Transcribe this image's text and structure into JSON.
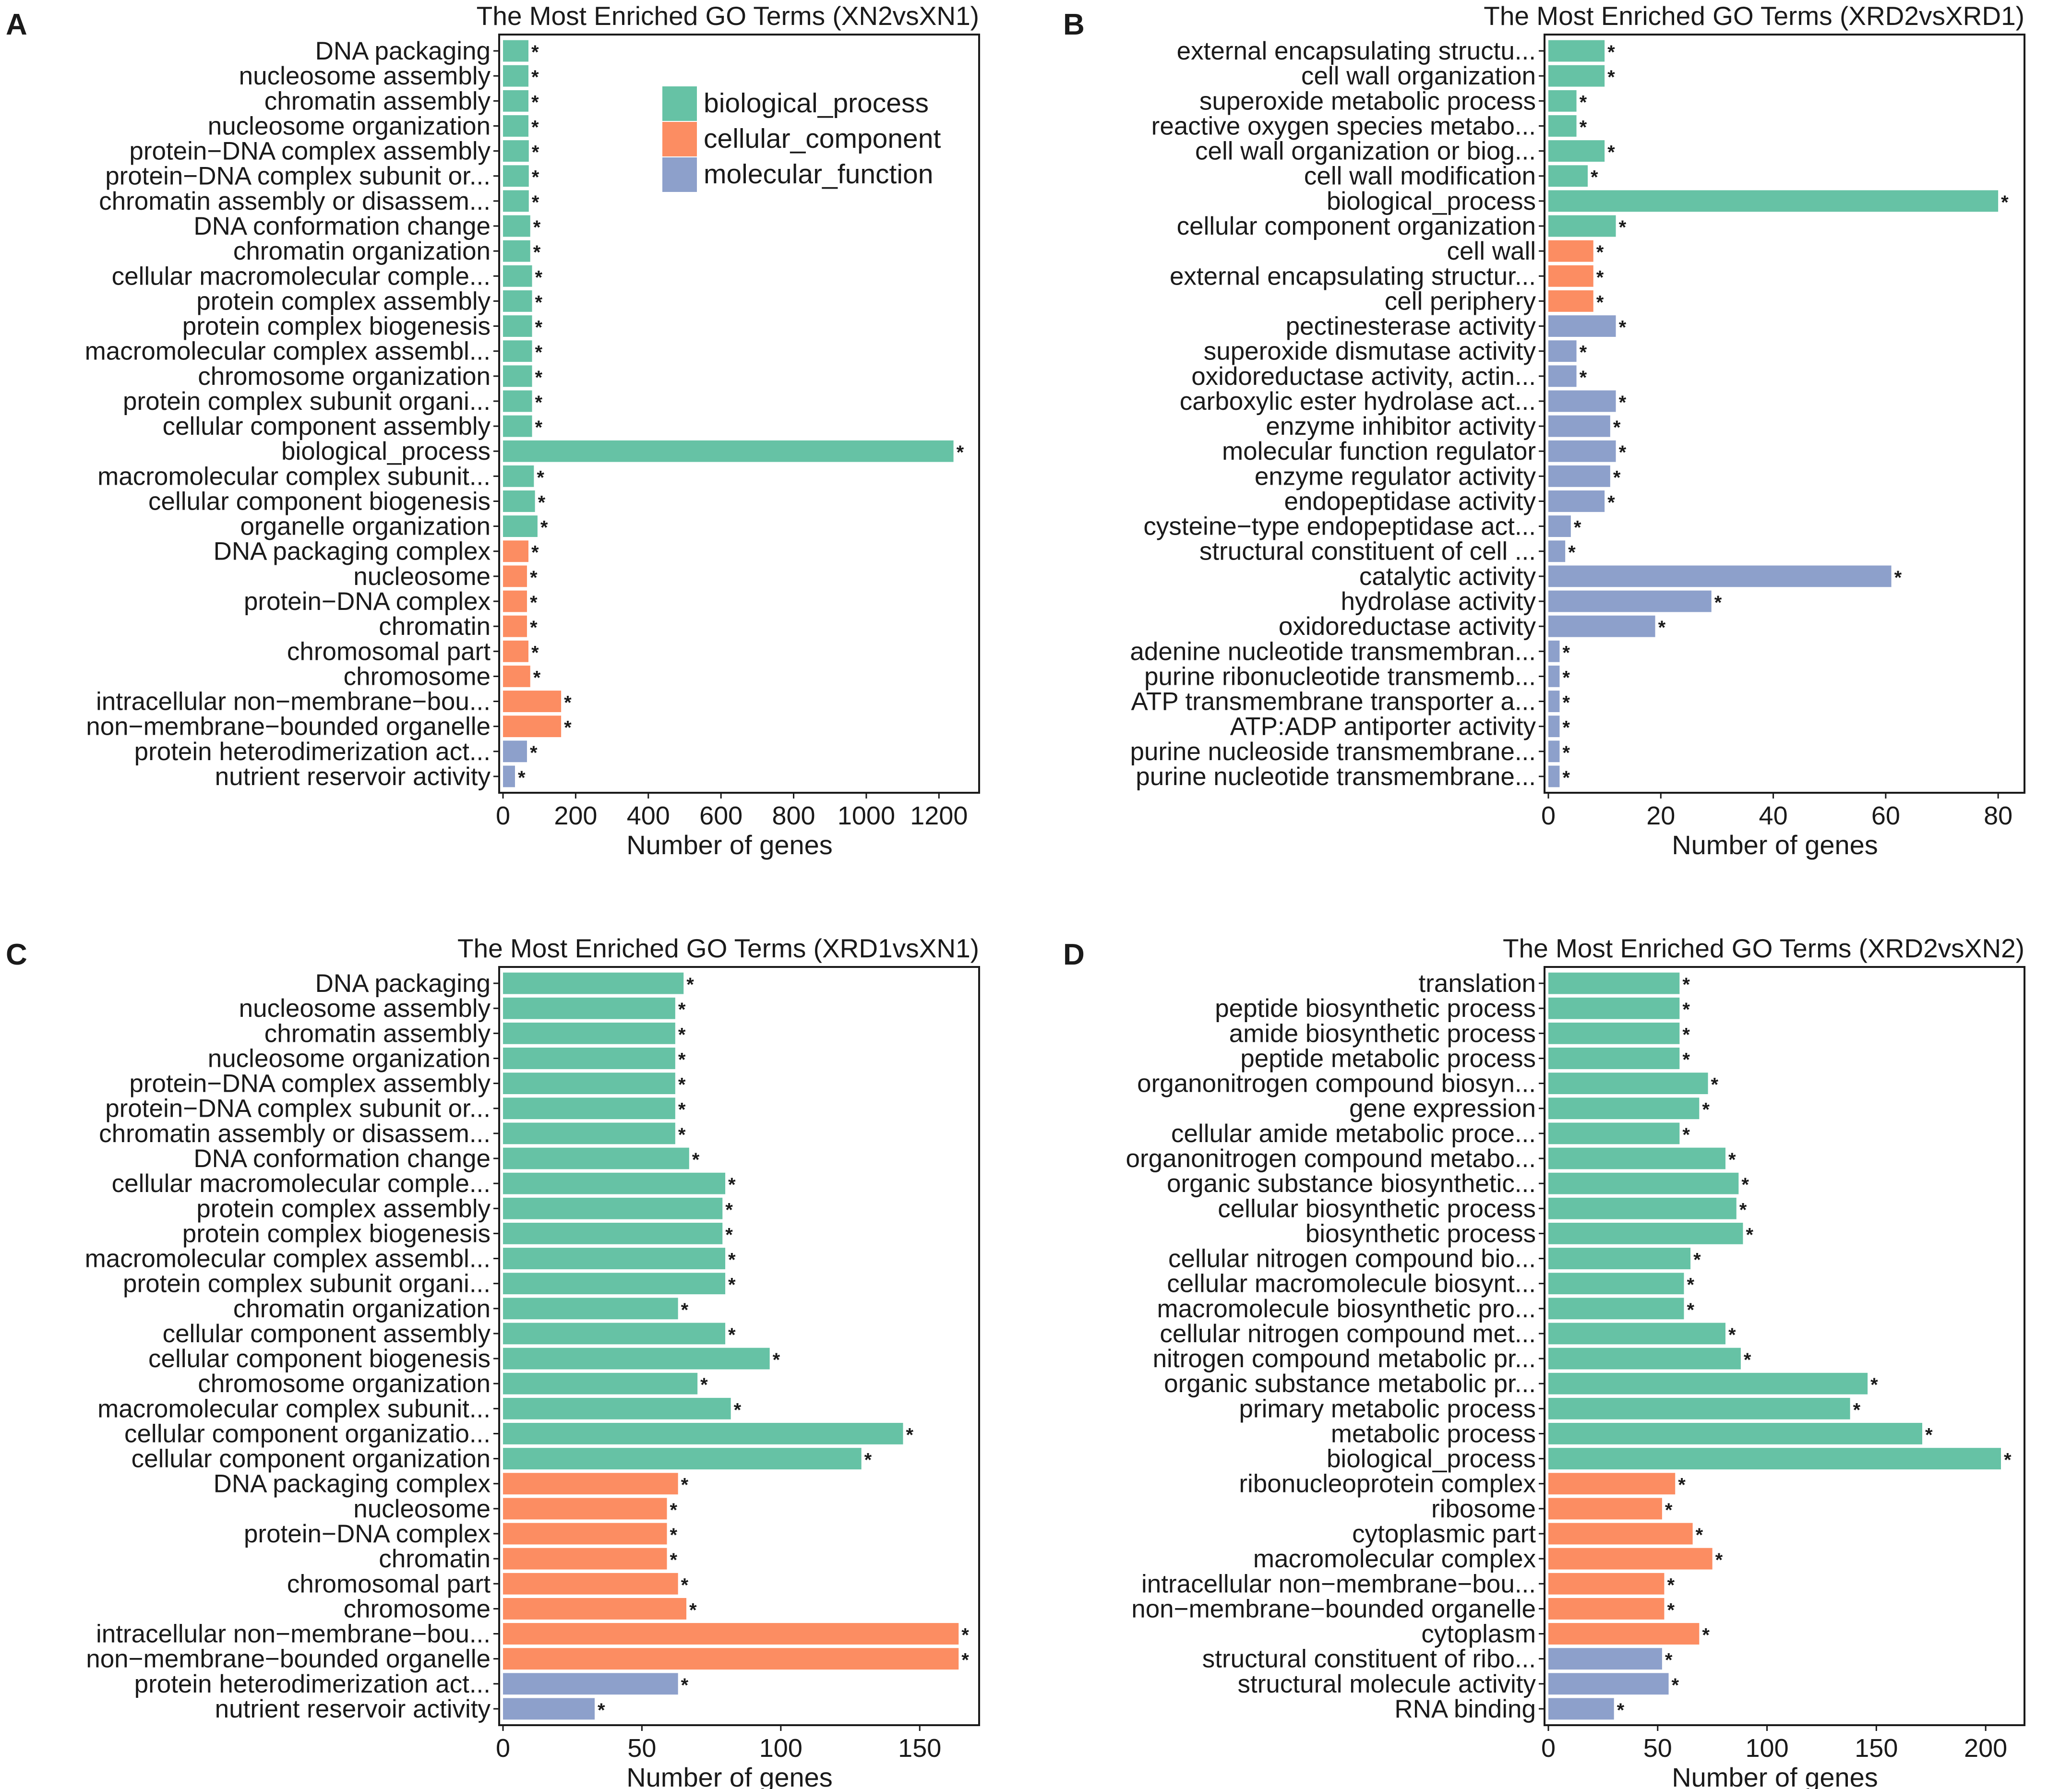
{
  "colors": {
    "biological_process": "#66c2a5",
    "cellular_component": "#fc8d62",
    "molecular_function": "#8da0cb"
  },
  "legend": [
    {
      "key": "biological_process",
      "label": "biological_process"
    },
    {
      "key": "cellular_component",
      "label": "cellular_component"
    },
    {
      "key": "molecular_function",
      "label": "molecular_function"
    }
  ],
  "chart_data": [
    {
      "panel": "A",
      "type": "bar",
      "orientation": "horizontal",
      "title": "The Most Enriched GO Terms (XN2vsXN1)",
      "xlabel": "Number of genes",
      "xlim": [
        0,
        1300
      ],
      "xticks": [
        0,
        200,
        400,
        600,
        800,
        1000,
        1200
      ],
      "significance_marker": "*",
      "legend_position": "top-right",
      "bars": [
        {
          "label": "DNA packaging",
          "value": 70,
          "category": "biological_process"
        },
        {
          "label": "nucleosome assembly",
          "value": 70,
          "category": "biological_process"
        },
        {
          "label": "chromatin assembly",
          "value": 70,
          "category": "biological_process"
        },
        {
          "label": "nucleosome organization",
          "value": 70,
          "category": "biological_process"
        },
        {
          "label": "protein−DNA complex assembly",
          "value": 71,
          "category": "biological_process"
        },
        {
          "label": "protein−DNA complex subunit or...",
          "value": 71,
          "category": "biological_process"
        },
        {
          "label": "chromatin assembly or disassem...",
          "value": 71,
          "category": "biological_process"
        },
        {
          "label": "DNA conformation change",
          "value": 75,
          "category": "biological_process"
        },
        {
          "label": "chromatin organization",
          "value": 75,
          "category": "biological_process"
        },
        {
          "label": "cellular macromolecular comple...",
          "value": 80,
          "category": "biological_process"
        },
        {
          "label": "protein complex assembly",
          "value": 80,
          "category": "biological_process"
        },
        {
          "label": "protein complex biogenesis",
          "value": 80,
          "category": "biological_process"
        },
        {
          "label": "macromolecular complex assembl...",
          "value": 80,
          "category": "biological_process"
        },
        {
          "label": "chromosome organization",
          "value": 80,
          "category": "biological_process"
        },
        {
          "label": "protein complex subunit organi...",
          "value": 80,
          "category": "biological_process"
        },
        {
          "label": "cellular component assembly",
          "value": 80,
          "category": "biological_process"
        },
        {
          "label": "biological_process",
          "value": 1240,
          "category": "biological_process"
        },
        {
          "label": "macromolecular complex subunit...",
          "value": 85,
          "category": "biological_process"
        },
        {
          "label": "cellular component biogenesis",
          "value": 88,
          "category": "biological_process"
        },
        {
          "label": "organelle organization",
          "value": 95,
          "category": "biological_process"
        },
        {
          "label": "DNA packaging complex",
          "value": 70,
          "category": "cellular_component"
        },
        {
          "label": "nucleosome",
          "value": 66,
          "category": "cellular_component"
        },
        {
          "label": "protein−DNA complex",
          "value": 66,
          "category": "cellular_component"
        },
        {
          "label": "chromatin",
          "value": 66,
          "category": "cellular_component"
        },
        {
          "label": "chromosomal part",
          "value": 70,
          "category": "cellular_component"
        },
        {
          "label": "chromosome",
          "value": 75,
          "category": "cellular_component"
        },
        {
          "label": "intracellular non−membrane−bou...",
          "value": 160,
          "category": "cellular_component"
        },
        {
          "label": "non−membrane−bounded organelle",
          "value": 160,
          "category": "cellular_component"
        },
        {
          "label": "protein heterodimerization act...",
          "value": 66,
          "category": "molecular_function"
        },
        {
          "label": "nutrient reservoir activity",
          "value": 33,
          "category": "molecular_function"
        }
      ]
    },
    {
      "panel": "B",
      "type": "bar",
      "orientation": "horizontal",
      "title": "The Most Enriched GO Terms (XRD2vsXRD1)",
      "xlabel": "Number of genes",
      "xlim": [
        0,
        84
      ],
      "xticks": [
        0,
        20,
        40,
        60,
        80
      ],
      "significance_marker": "*",
      "bars": [
        {
          "label": "external encapsulating structu...",
          "value": 10,
          "category": "biological_process"
        },
        {
          "label": "cell wall organization",
          "value": 10,
          "category": "biological_process"
        },
        {
          "label": "superoxide metabolic process",
          "value": 5,
          "category": "biological_process"
        },
        {
          "label": "reactive oxygen species metabo...",
          "value": 5,
          "category": "biological_process"
        },
        {
          "label": "cell wall organization or biog...",
          "value": 10,
          "category": "biological_process"
        },
        {
          "label": "cell wall modification",
          "value": 7,
          "category": "biological_process"
        },
        {
          "label": "biological_process",
          "value": 80,
          "category": "biological_process"
        },
        {
          "label": "cellular component organization",
          "value": 12,
          "category": "biological_process"
        },
        {
          "label": "cell wall",
          "value": 8,
          "category": "cellular_component"
        },
        {
          "label": "external encapsulating structur...",
          "value": 8,
          "category": "cellular_component"
        },
        {
          "label": "cell periphery",
          "value": 8,
          "category": "cellular_component"
        },
        {
          "label": "pectinesterase activity",
          "value": 12,
          "category": "molecular_function"
        },
        {
          "label": "superoxide dismutase activity",
          "value": 5,
          "category": "molecular_function"
        },
        {
          "label": "oxidoreductase activity, actin...",
          "value": 5,
          "category": "molecular_function"
        },
        {
          "label": "carboxylic ester hydrolase act...",
          "value": 12,
          "category": "molecular_function"
        },
        {
          "label": "enzyme inhibitor activity",
          "value": 11,
          "category": "molecular_function"
        },
        {
          "label": "molecular function regulator",
          "value": 12,
          "category": "molecular_function"
        },
        {
          "label": "enzyme regulator activity",
          "value": 11,
          "category": "molecular_function"
        },
        {
          "label": "endopeptidase activity",
          "value": 10,
          "category": "molecular_function"
        },
        {
          "label": "cysteine−type endopeptidase act...",
          "value": 4,
          "category": "molecular_function"
        },
        {
          "label": "structural constituent of cell ...",
          "value": 3,
          "category": "molecular_function"
        },
        {
          "label": "catalytic activity",
          "value": 61,
          "category": "molecular_function"
        },
        {
          "label": "hydrolase activity",
          "value": 29,
          "category": "molecular_function"
        },
        {
          "label": "oxidoreductase activity",
          "value": 19,
          "category": "molecular_function"
        },
        {
          "label": "adenine nucleotide transmembran...",
          "value": 2,
          "category": "molecular_function"
        },
        {
          "label": "purine ribonucleotide transmemb...",
          "value": 2,
          "category": "molecular_function"
        },
        {
          "label": "ATP transmembrane transporter a...",
          "value": 2,
          "category": "molecular_function"
        },
        {
          "label": "ATP:ADP antiporter activity",
          "value": 2,
          "category": "molecular_function"
        },
        {
          "label": "purine nucleoside transmembrane...",
          "value": 2,
          "category": "molecular_function"
        },
        {
          "label": "purine nucleotide transmembrane...",
          "value": 2,
          "category": "molecular_function"
        }
      ]
    },
    {
      "panel": "C",
      "type": "bar",
      "orientation": "horizontal",
      "title": "The Most Enriched GO Terms (XRD1vsXN1)",
      "xlabel": "Number of genes",
      "xlim": [
        0,
        170
      ],
      "xticks": [
        0,
        50,
        100,
        150
      ],
      "significance_marker": "*",
      "bars": [
        {
          "label": "DNA packaging",
          "value": 65,
          "category": "biological_process"
        },
        {
          "label": "nucleosome assembly",
          "value": 62,
          "category": "biological_process"
        },
        {
          "label": "chromatin assembly",
          "value": 62,
          "category": "biological_process"
        },
        {
          "label": "nucleosome organization",
          "value": 62,
          "category": "biological_process"
        },
        {
          "label": "protein−DNA complex assembly",
          "value": 62,
          "category": "biological_process"
        },
        {
          "label": "protein−DNA complex subunit or...",
          "value": 62,
          "category": "biological_process"
        },
        {
          "label": "chromatin assembly or disassem...",
          "value": 62,
          "category": "biological_process"
        },
        {
          "label": "DNA conformation change",
          "value": 67,
          "category": "biological_process"
        },
        {
          "label": "cellular macromolecular comple...",
          "value": 80,
          "category": "biological_process"
        },
        {
          "label": "protein complex assembly",
          "value": 79,
          "category": "biological_process"
        },
        {
          "label": "protein complex biogenesis",
          "value": 79,
          "category": "biological_process"
        },
        {
          "label": "macromolecular complex assembl...",
          "value": 80,
          "category": "biological_process"
        },
        {
          "label": "protein complex subunit organi...",
          "value": 80,
          "category": "biological_process"
        },
        {
          "label": "chromatin organization",
          "value": 63,
          "category": "biological_process"
        },
        {
          "label": "cellular component assembly",
          "value": 80,
          "category": "biological_process"
        },
        {
          "label": "cellular component biogenesis",
          "value": 96,
          "category": "biological_process"
        },
        {
          "label": "chromosome organization",
          "value": 70,
          "category": "biological_process"
        },
        {
          "label": "macromolecular complex subunit...",
          "value": 82,
          "category": "biological_process"
        },
        {
          "label": "cellular component organizatio...",
          "value": 144,
          "category": "biological_process"
        },
        {
          "label": "cellular component organization",
          "value": 129,
          "category": "biological_process"
        },
        {
          "label": "DNA packaging complex",
          "value": 63,
          "category": "cellular_component"
        },
        {
          "label": "nucleosome",
          "value": 59,
          "category": "cellular_component"
        },
        {
          "label": "protein−DNA complex",
          "value": 59,
          "category": "cellular_component"
        },
        {
          "label": "chromatin",
          "value": 59,
          "category": "cellular_component"
        },
        {
          "label": "chromosomal part",
          "value": 63,
          "category": "cellular_component"
        },
        {
          "label": "chromosome",
          "value": 66,
          "category": "cellular_component"
        },
        {
          "label": "intracellular non−membrane−bou...",
          "value": 164,
          "category": "cellular_component"
        },
        {
          "label": "non−membrane−bounded organelle",
          "value": 164,
          "category": "cellular_component"
        },
        {
          "label": "protein heterodimerization act...",
          "value": 63,
          "category": "molecular_function"
        },
        {
          "label": "nutrient reservoir activity",
          "value": 33,
          "category": "molecular_function"
        }
      ]
    },
    {
      "panel": "D",
      "type": "bar",
      "orientation": "horizontal",
      "title": "The Most Enriched GO Terms (XRD2vsXN2)",
      "xlabel": "Number of genes",
      "xlim": [
        0,
        216
      ],
      "xticks": [
        0,
        50,
        100,
        150,
        200
      ],
      "significance_marker": "*",
      "bars": [
        {
          "label": "translation",
          "value": 60,
          "category": "biological_process"
        },
        {
          "label": "peptide biosynthetic process",
          "value": 60,
          "category": "biological_process"
        },
        {
          "label": "amide biosynthetic process",
          "value": 60,
          "category": "biological_process"
        },
        {
          "label": "peptide metabolic process",
          "value": 60,
          "category": "biological_process"
        },
        {
          "label": "organonitrogen compound biosyn...",
          "value": 73,
          "category": "biological_process"
        },
        {
          "label": "gene expression",
          "value": 69,
          "category": "biological_process"
        },
        {
          "label": "cellular amide metabolic proce...",
          "value": 60,
          "category": "biological_process"
        },
        {
          "label": "organonitrogen compound metabo...",
          "value": 81,
          "category": "biological_process"
        },
        {
          "label": "organic substance biosynthetic...",
          "value": 87,
          "category": "biological_process"
        },
        {
          "label": "cellular biosynthetic process",
          "value": 86,
          "category": "biological_process"
        },
        {
          "label": "biosynthetic process",
          "value": 89,
          "category": "biological_process"
        },
        {
          "label": "cellular nitrogen compound bio...",
          "value": 65,
          "category": "biological_process"
        },
        {
          "label": "cellular macromolecule biosynt...",
          "value": 62,
          "category": "biological_process"
        },
        {
          "label": "macromolecule biosynthetic pro...",
          "value": 62,
          "category": "biological_process"
        },
        {
          "label": "cellular nitrogen compound met...",
          "value": 81,
          "category": "biological_process"
        },
        {
          "label": "nitrogen compound metabolic pr...",
          "value": 88,
          "category": "biological_process"
        },
        {
          "label": "organic substance metabolic pr...",
          "value": 146,
          "category": "biological_process"
        },
        {
          "label": "primary metabolic process",
          "value": 138,
          "category": "biological_process"
        },
        {
          "label": "metabolic process",
          "value": 171,
          "category": "biological_process"
        },
        {
          "label": "biological_process",
          "value": 207,
          "category": "biological_process"
        },
        {
          "label": "ribonucleoprotein complex",
          "value": 58,
          "category": "cellular_component"
        },
        {
          "label": "ribosome",
          "value": 52,
          "category": "cellular_component"
        },
        {
          "label": "cytoplasmic part",
          "value": 66,
          "category": "cellular_component"
        },
        {
          "label": "macromolecular complex",
          "value": 75,
          "category": "cellular_component"
        },
        {
          "label": "intracellular non−membrane−bou...",
          "value": 53,
          "category": "cellular_component"
        },
        {
          "label": "non−membrane−bounded organelle",
          "value": 53,
          "category": "cellular_component"
        },
        {
          "label": "cytoplasm",
          "value": 69,
          "category": "cellular_component"
        },
        {
          "label": "structural constituent of ribo...",
          "value": 52,
          "category": "molecular_function"
        },
        {
          "label": "structural molecule activity",
          "value": 55,
          "category": "molecular_function"
        },
        {
          "label": "RNA binding",
          "value": 30,
          "category": "molecular_function"
        }
      ]
    }
  ]
}
